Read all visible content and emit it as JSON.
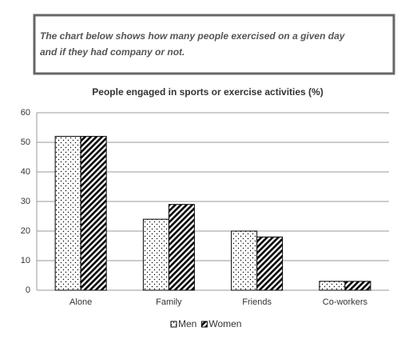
{
  "chart_data": {
    "type": "bar",
    "annotation": [
      "The chart below shows how many people exercised on a given day",
      "and if they had company or not."
    ],
    "title": "People engaged in sports or exercise activities (%)",
    "categories": [
      "Alone",
      "Family",
      "Friends",
      "Co-workers"
    ],
    "series": [
      {
        "name": "Men",
        "color": "#000000",
        "pattern": "dots",
        "values": [
          52,
          24,
          20,
          3
        ]
      },
      {
        "name": "Women",
        "color": "#000000",
        "pattern": "hatch",
        "values": [
          52,
          29,
          18,
          3
        ]
      }
    ],
    "ylim": [
      0,
      60
    ],
    "yticks": [
      0,
      10,
      20,
      30,
      40,
      50,
      60
    ],
    "grid": true,
    "legend": "bottom"
  }
}
